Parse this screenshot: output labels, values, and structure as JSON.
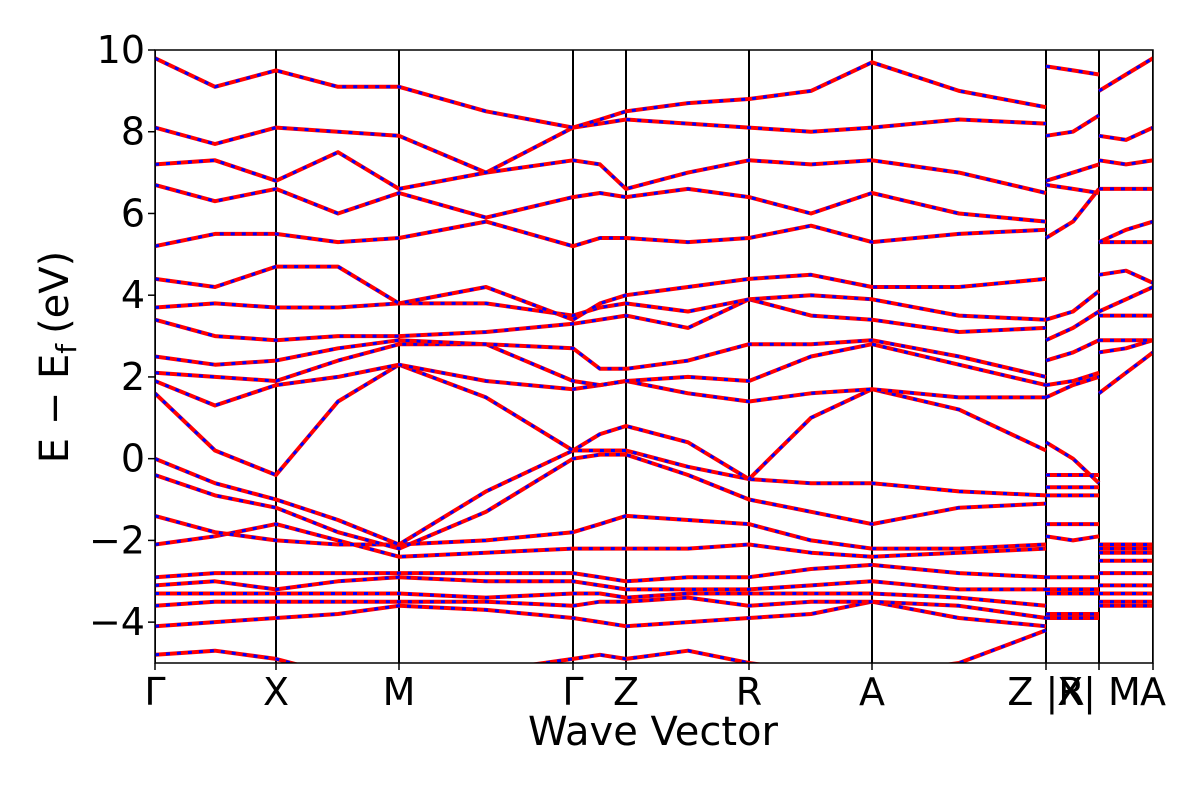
{
  "chart_data": {
    "type": "line",
    "xlabel": "Wave Vector",
    "ylabel_main": "E − E",
    "ylabel_sub": "f",
    "ylabel_unit": "(eV)",
    "xlim": [
      0,
      9.98
    ],
    "ylim": [
      -5,
      10
    ],
    "xticks": [
      {
        "value": 0,
        "label": "Γ"
      },
      {
        "value": 1.21,
        "label": "X"
      },
      {
        "value": 2.44,
        "label": "M"
      },
      {
        "value": 4.18,
        "label": "Γ"
      },
      {
        "value": 4.71,
        "label": "Z"
      },
      {
        "value": 5.94,
        "label": "R"
      },
      {
        "value": 7.17,
        "label": "A"
      },
      {
        "value": 8.91,
        "label": "Z |R"
      },
      {
        "value": 9.44,
        "label": "X| M"
      },
      {
        "value": 9.98,
        "label": "A"
      }
    ],
    "yticks": [
      {
        "value": -4,
        "label": "−4"
      },
      {
        "value": -2,
        "label": "−2"
      },
      0,
      2,
      4,
      6,
      8,
      10
    ],
    "overlay_color": "#0000ff",
    "x": [
      0,
      0.6,
      1.21,
      1.83,
      2.44,
      3.31,
      4.18,
      4.45,
      4.71,
      5.33,
      5.94,
      6.56,
      7.17,
      8.04,
      8.91,
      8.91,
      8.91,
      9.18,
      9.44,
      9.44,
      9.44,
      9.71,
      9.98
    ],
    "series": [
      {
        "color": "#ff0000",
        "values": [
          -4.8,
          -4.7,
          -4.9,
          -5.3,
          -5.5,
          -5.2,
          -4.9,
          -4.8,
          -4.9,
          -4.7,
          -5.0,
          -5.2,
          -5.3,
          -5.0,
          -4.2,
          null,
          -3.9,
          -3.9,
          -3.9,
          null,
          -3.6,
          -3.6,
          -3.6
        ]
      },
      {
        "color": "#ff0000",
        "values": [
          -4.1,
          -4.0,
          -3.9,
          -3.8,
          -3.6,
          -3.7,
          -3.9,
          -4.0,
          -4.1,
          -4.0,
          -3.9,
          -3.8,
          -3.5,
          -3.9,
          -4.1,
          null,
          -3.8,
          -3.8,
          -3.8,
          null,
          -3.5,
          -3.5,
          -3.5
        ]
      },
      {
        "color": "#ff0000",
        "values": [
          -3.6,
          -3.5,
          -3.5,
          -3.5,
          -3.5,
          -3.5,
          -3.6,
          -3.5,
          -3.5,
          -3.4,
          -3.6,
          -3.5,
          -3.5,
          -3.6,
          -3.9,
          null,
          -3.3,
          -3.3,
          -3.3,
          null,
          -3.3,
          -3.3,
          -3.3
        ]
      },
      {
        "color": "#ff0000",
        "values": [
          -3.3,
          -3.3,
          -3.3,
          -3.3,
          -3.3,
          -3.4,
          -3.3,
          -3.3,
          -3.4,
          -3.3,
          -3.3,
          -3.3,
          -3.3,
          -3.4,
          -3.6,
          null,
          -3.2,
          -3.2,
          -3.2,
          null,
          -3.1,
          -3.1,
          -3.1
        ]
      },
      {
        "color": "#ff0000",
        "values": [
          -3.1,
          -3.0,
          -3.2,
          -3.0,
          -2.9,
          -3.0,
          -3.0,
          -3.1,
          -3.2,
          -3.2,
          -3.2,
          -3.1,
          -3.0,
          -3.2,
          -3.2,
          null,
          -3.2,
          -3.2,
          -3.2,
          null,
          -2.8,
          -2.8,
          -2.8
        ]
      },
      {
        "color": "#ff0000",
        "values": [
          -2.9,
          -2.8,
          -2.8,
          -2.8,
          -2.8,
          -2.8,
          -2.8,
          -2.9,
          -3.0,
          -2.9,
          -2.9,
          -2.7,
          -2.6,
          -2.8,
          -2.9,
          null,
          -2.9,
          -2.9,
          -2.9,
          null,
          -2.5,
          -2.5,
          -2.5
        ]
      },
      {
        "color": "#ff0000",
        "values": [
          -2.1,
          -1.9,
          -1.6,
          -2.0,
          -2.4,
          -2.3,
          -2.2,
          -2.2,
          -2.2,
          -2.2,
          -2.1,
          -2.3,
          -2.4,
          -2.3,
          -2.2,
          null,
          -1.9,
          -2.0,
          -1.9,
          null,
          -2.3,
          -2.3,
          -2.3
        ]
      },
      {
        "color": "#ff0000",
        "values": [
          -1.4,
          -1.8,
          -2.0,
          -2.1,
          -2.1,
          -2.0,
          -1.8,
          -1.6,
          -1.4,
          -1.5,
          -1.6,
          -2.0,
          -2.2,
          -2.2,
          -2.1,
          null,
          -1.6,
          -1.6,
          -1.6,
          null,
          -2.1,
          -2.1,
          -2.1
        ]
      },
      {
        "color": "#ff0000",
        "values": [
          -0.4,
          -0.9,
          -1.2,
          -1.8,
          -2.2,
          -1.3,
          0.0,
          0.1,
          0.1,
          -0.4,
          -1.0,
          -1.3,
          -1.6,
          -1.2,
          -1.1,
          null,
          -0.9,
          -0.9,
          -0.9,
          null,
          -2.2,
          -2.2,
          -2.2
        ]
      },
      {
        "color": "#ff0000",
        "values": [
          0.0,
          -0.6,
          -1.0,
          -1.5,
          -2.1,
          -0.8,
          0.2,
          0.2,
          0.2,
          -0.2,
          -0.5,
          -0.6,
          -0.6,
          -0.8,
          -0.9,
          null,
          -0.7,
          -0.7,
          -0.7,
          null,
          -2.2,
          -2.2,
          -2.2
        ]
      },
      {
        "color": "#ff0000",
        "values": [
          1.6,
          0.2,
          -0.4,
          1.4,
          2.3,
          1.5,
          0.2,
          0.6,
          0.8,
          0.4,
          -0.5,
          1.0,
          1.7,
          1.2,
          0.2,
          null,
          -0.4,
          -0.4,
          -0.4,
          null,
          1.6,
          2.1,
          2.6
        ]
      },
      {
        "color": "#ff0000",
        "values": [
          1.9,
          1.3,
          1.8,
          2.0,
          2.3,
          1.9,
          1.7,
          1.8,
          1.9,
          1.6,
          1.4,
          1.6,
          1.7,
          1.5,
          1.5,
          null,
          0.4,
          0.0,
          -0.6,
          null,
          2.6,
          2.7,
          2.9
        ]
      },
      {
        "color": "#ff0000",
        "values": [
          2.1,
          2.0,
          1.9,
          2.4,
          2.8,
          2.8,
          1.9,
          1.8,
          1.9,
          2.0,
          1.9,
          2.5,
          2.8,
          2.3,
          1.8,
          null,
          1.5,
          1.8,
          2.0,
          null,
          2.9,
          2.9,
          2.9
        ]
      },
      {
        "color": "#ff0000",
        "values": [
          2.5,
          2.3,
          2.4,
          2.7,
          2.9,
          2.8,
          2.7,
          2.2,
          2.2,
          2.4,
          2.8,
          2.8,
          2.9,
          2.5,
          2.0,
          null,
          1.8,
          1.9,
          2.1,
          null,
          3.5,
          3.5,
          3.5
        ]
      },
      {
        "color": "#ff0000",
        "values": [
          3.4,
          3.0,
          2.9,
          3.0,
          3.0,
          3.1,
          3.3,
          3.4,
          3.5,
          3.2,
          3.9,
          3.5,
          3.4,
          3.1,
          3.2,
          null,
          2.4,
          2.6,
          2.9,
          null,
          3.6,
          3.9,
          4.2
        ]
      },
      {
        "color": "#ff0000",
        "values": [
          3.7,
          3.8,
          3.7,
          3.7,
          3.8,
          3.8,
          3.5,
          3.7,
          3.8,
          3.6,
          3.9,
          4.0,
          3.9,
          3.5,
          3.4,
          null,
          2.9,
          3.2,
          3.6,
          null,
          4.5,
          4.6,
          4.3
        ]
      },
      {
        "color": "#ff0000",
        "values": [
          4.4,
          4.2,
          4.7,
          4.7,
          3.8,
          4.2,
          3.4,
          3.8,
          4.0,
          4.2,
          4.4,
          4.5,
          4.2,
          4.2,
          4.4,
          null,
          3.4,
          3.6,
          4.1,
          null,
          5.3,
          5.3,
          5.3
        ]
      },
      {
        "color": "#ff0000",
        "values": [
          5.2,
          5.5,
          5.5,
          5.3,
          5.4,
          5.8,
          5.2,
          5.4,
          5.4,
          5.3,
          5.4,
          5.7,
          5.3,
          5.5,
          5.6,
          null,
          5.4,
          5.8,
          6.6,
          null,
          5.3,
          5.6,
          5.8
        ]
      },
      {
        "color": "#ff0000",
        "values": [
          6.7,
          6.3,
          6.6,
          6.0,
          6.5,
          5.9,
          6.4,
          6.5,
          6.4,
          6.6,
          6.4,
          6.0,
          6.5,
          6.0,
          5.8,
          null,
          6.7,
          6.6,
          6.5,
          null,
          6.6,
          6.6,
          6.6
        ]
      },
      {
        "color": "#ff0000",
        "values": [
          7.2,
          7.3,
          6.8,
          7.5,
          6.6,
          7.0,
          7.3,
          7.2,
          6.6,
          7.0,
          7.3,
          7.2,
          7.3,
          7.0,
          6.5,
          null,
          6.8,
          7.0,
          7.2,
          null,
          7.3,
          7.2,
          7.3
        ]
      },
      {
        "color": "#ff0000",
        "values": [
          8.1,
          7.7,
          8.1,
          8.0,
          7.9,
          7.0,
          8.1,
          8.2,
          8.3,
          8.2,
          8.1,
          8.0,
          8.1,
          8.3,
          8.2,
          null,
          7.9,
          8.0,
          8.4,
          null,
          7.9,
          7.8,
          8.1
        ]
      },
      {
        "color": "#ff0000",
        "values": [
          9.8,
          9.1,
          9.5,
          9.1,
          9.1,
          8.5,
          8.1,
          8.3,
          8.5,
          8.7,
          8.8,
          9.0,
          9.7,
          9.0,
          8.6,
          null,
          9.6,
          9.5,
          9.4,
          null,
          9.0,
          9.4,
          9.8
        ]
      }
    ]
  }
}
